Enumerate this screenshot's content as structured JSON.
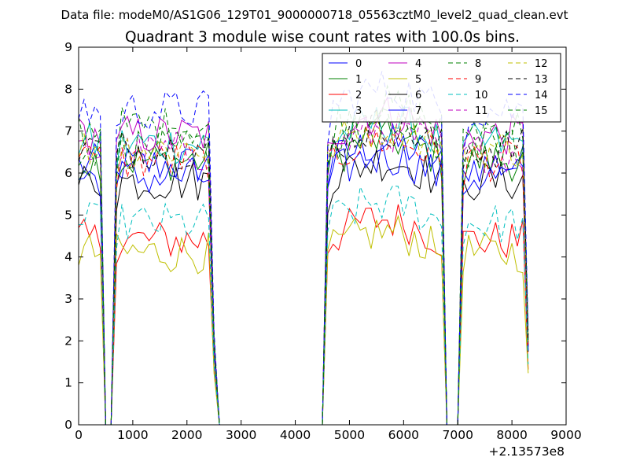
{
  "figure": {
    "suptitle": "Data file: modeM0/AS1G06_129T01_9000000718_05563cztM0_level2_quad_clean.evt"
  },
  "chart_data": {
    "type": "line",
    "title": "Quadrant 3 module wise count rates with 100.0s bins.",
    "xlabel": "",
    "ylabel": "",
    "xlim": [
      0,
      9000
    ],
    "ylim": [
      0,
      9
    ],
    "x_offset_label": "+2.13573e8",
    "xticks": [
      0,
      1000,
      2000,
      3000,
      4000,
      5000,
      6000,
      7000,
      8000,
      9000
    ],
    "xtick_labels": [
      "0",
      "1000",
      "2000",
      "3000",
      "4000",
      "5000",
      "6000",
      "7000",
      "8000",
      "9000"
    ],
    "yticks": [
      0,
      1,
      2,
      3,
      4,
      5,
      6,
      7,
      8,
      9
    ],
    "ytick_labels": [
      "0",
      "1",
      "2",
      "3",
      "4",
      "5",
      "6",
      "7",
      "8",
      "9"
    ],
    "grid": false,
    "legend_position": "top-right",
    "legend_columns": 4,
    "time_bins": {
      "start": 0,
      "step": 100,
      "segments": [
        [
          0,
          2500
        ],
        [
          4600,
          6700
        ],
        [
          7100,
          8300
        ]
      ]
    },
    "series": [
      {
        "name": "0",
        "color": "#0000ff",
        "style": "solid",
        "level": 6.2,
        "sample_values": [
          6.3,
          6.6,
          6.8,
          5.8,
          5.9
        ]
      },
      {
        "name": "1",
        "color": "#008000",
        "style": "solid",
        "level": 6.3,
        "sample_values": [
          6.8,
          6.5,
          6.5,
          6.2,
          6.0
        ]
      },
      {
        "name": "2",
        "color": "#ff0000",
        "style": "solid",
        "level": 4.4,
        "sample_values": [
          4.5,
          4.5,
          4.4,
          4.7,
          4.6
        ]
      },
      {
        "name": "3",
        "color": "#00bfbf",
        "style": "solid",
        "level": 6.7,
        "sample_values": [
          7.1,
          6.8,
          6.7,
          6.9,
          6.6
        ]
      },
      {
        "name": "4",
        "color": "#bf00bf",
        "style": "solid",
        "level": 6.9,
        "sample_values": [
          6.8,
          6.9,
          6.9,
          7.0,
          6.6
        ]
      },
      {
        "name": "5",
        "color": "#bfbf00",
        "style": "solid",
        "level": 4.1,
        "sample_values": [
          4.3,
          3.9,
          3.8,
          4.4,
          4.2
        ]
      },
      {
        "name": "6",
        "color": "#000000",
        "style": "solid",
        "level": 5.8,
        "sample_values": [
          6.7,
          5.8,
          5.5,
          6.0,
          5.8
        ]
      },
      {
        "name": "7",
        "color": "#0000ff",
        "style": "solid",
        "level": 5.9,
        "sample_values": [
          6.6,
          5.8,
          5.7,
          6.1,
          5.9
        ]
      },
      {
        "name": "8",
        "color": "#008000",
        "style": "dashed",
        "level": 7.1,
        "sample_values": [
          7.4,
          7.1,
          7.0,
          7.3,
          7.0
        ]
      },
      {
        "name": "9",
        "color": "#ff0000",
        "style": "dashed",
        "level": 6.3,
        "sample_values": [
          6.5,
          6.3,
          6.1,
          6.4,
          6.3
        ]
      },
      {
        "name": "10",
        "color": "#00bfbf",
        "style": "dashed",
        "level": 4.8,
        "sample_values": [
          4.8,
          4.6,
          4.6,
          5.1,
          4.7
        ]
      },
      {
        "name": "11",
        "color": "#bf00bf",
        "style": "dashed",
        "level": 6.5,
        "sample_values": [
          6.9,
          6.6,
          6.4,
          6.7,
          6.6
        ]
      },
      {
        "name": "12",
        "color": "#bfbf00",
        "style": "dashed",
        "level": 6.6,
        "sample_values": [
          6.9,
          6.8,
          6.6,
          6.8,
          6.7
        ]
      },
      {
        "name": "13",
        "color": "#000000",
        "style": "dashed",
        "level": 6.6,
        "sample_values": [
          6.8,
          6.6,
          6.5,
          6.6,
          6.5
        ]
      },
      {
        "name": "14",
        "color": "#0000ff",
        "style": "dashed",
        "level": 7.5,
        "sample_values": [
          7.8,
          7.9,
          7.4,
          7.6,
          7.3
        ]
      },
      {
        "name": "15",
        "color": "#008000",
        "style": "dashed",
        "level": 6.6,
        "sample_values": [
          7.2,
          6.8,
          6.6,
          7.0,
          6.5
        ]
      }
    ]
  }
}
